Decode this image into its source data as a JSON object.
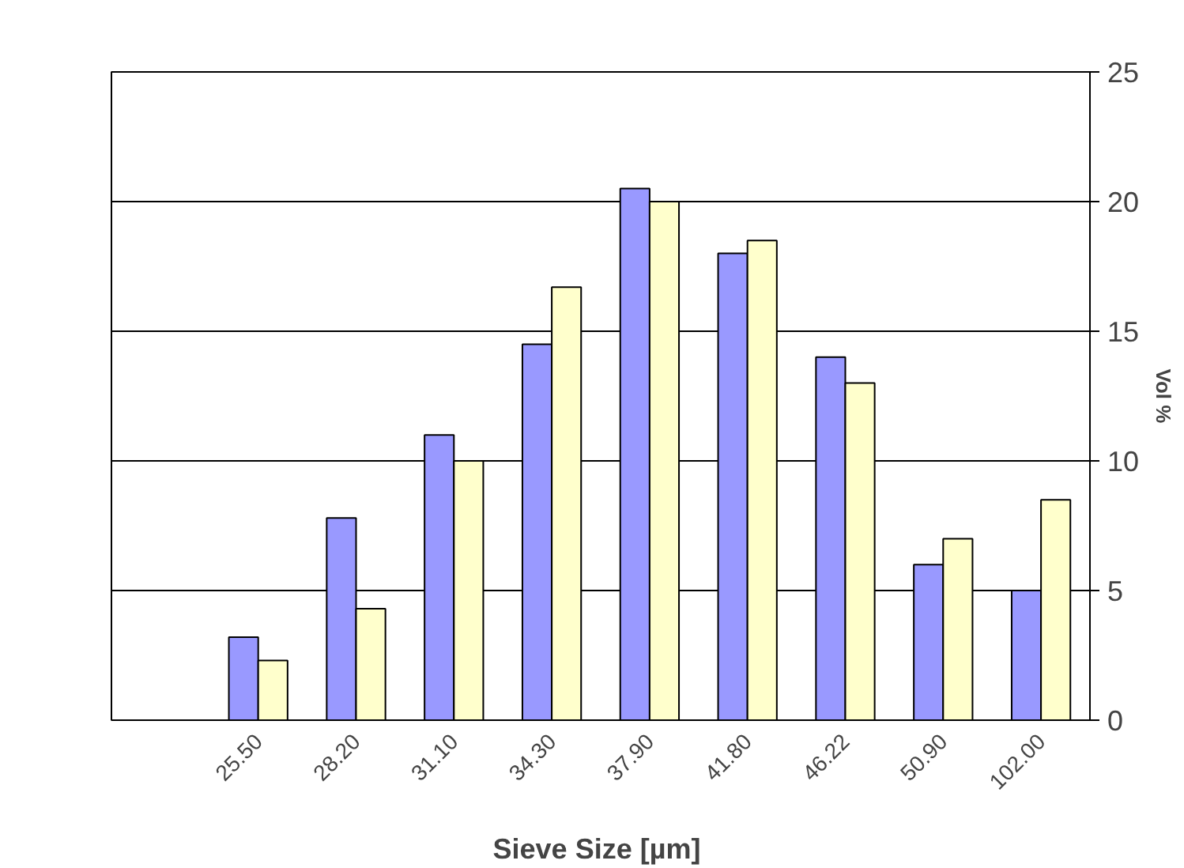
{
  "chart_data": {
    "type": "bar",
    "xlabel": "Sieve Size  [µm]",
    "ylabel": "Vol %",
    "categories": [
      null,
      "25.50",
      "28.20",
      "31.10",
      "34.30",
      "37.90",
      "41.80",
      "46.22",
      "50.90",
      "102.00"
    ],
    "series": [
      {
        "color": "#9999ff",
        "values": [
          null,
          3.2,
          7.8,
          11,
          14.5,
          20.5,
          18,
          14,
          6,
          5
        ]
      },
      {
        "color": "#ffffcc",
        "values": [
          null,
          2.3,
          4.3,
          10,
          16.7,
          20,
          18.5,
          13,
          7,
          8.5
        ]
      }
    ],
    "ylim": [
      0,
      25
    ],
    "yticks": [
      0,
      5,
      10,
      15,
      20,
      25
    ],
    "grid": "y"
  }
}
